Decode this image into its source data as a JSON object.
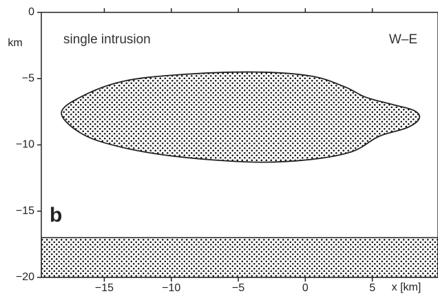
{
  "chart_data": {
    "type": "shape",
    "title": "single intrusion",
    "annotation": "W–E",
    "panel_label": "b",
    "y_label": "km",
    "x_label": "x [km]",
    "xlim": [
      -19.7,
      9.9
    ],
    "ylim": [
      -20,
      0
    ],
    "xticks": [
      {
        "value": -15,
        "label": "−15"
      },
      {
        "value": -10,
        "label": "−10"
      },
      {
        "value": -5,
        "label": "−5"
      },
      0,
      5
    ],
    "yticks": [
      0,
      {
        "value": -5,
        "label": "−5"
      },
      {
        "value": -10,
        "label": "−10"
      },
      {
        "value": -15,
        "label": "−15"
      },
      {
        "value": -20,
        "label": "−20"
      }
    ],
    "intrusion": {
      "x": [
        -18.2,
        -16.6,
        -13.6,
        -9.4,
        -3.8,
        0.4,
        2.9,
        4.5,
        6.5,
        8.1,
        8.5,
        7.6,
        5.5,
        3.5,
        0.4,
        -3.8,
        -9.4,
        -13.6,
        -16.6
      ],
      "y": [
        -7.6,
        -6.3,
        -5.2,
        -4.7,
        -4.5,
        -4.8,
        -5.6,
        -6.4,
        -6.95,
        -7.4,
        -8.0,
        -8.7,
        -9.35,
        -10.5,
        -11.1,
        -11.3,
        -10.9,
        -10.2,
        -9.2
      ]
    },
    "layer_top": -17
  }
}
